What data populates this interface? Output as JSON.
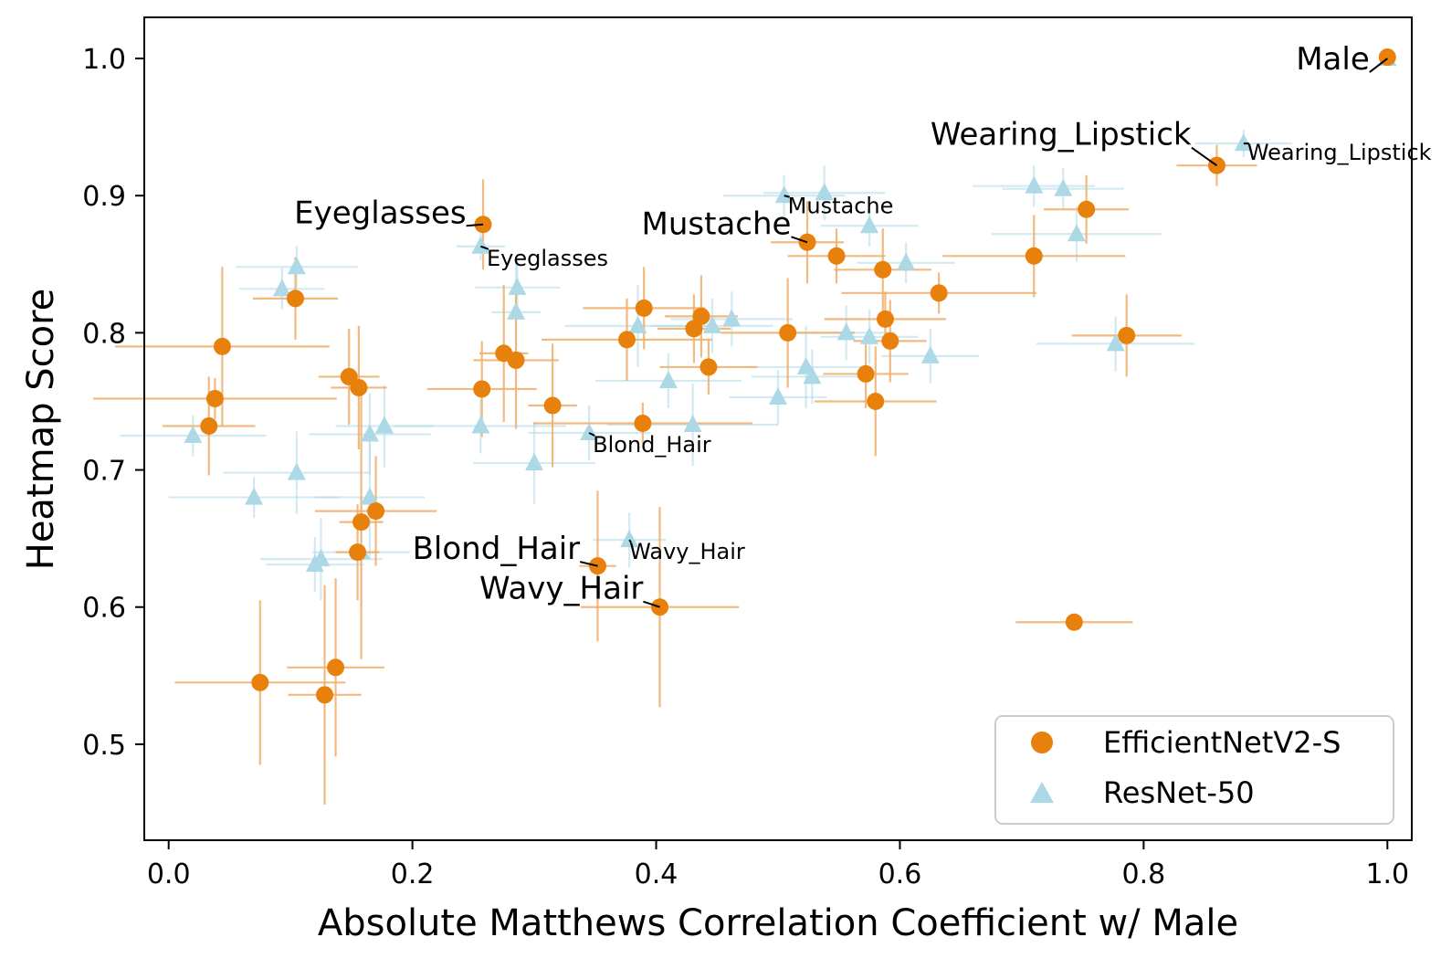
{
  "chart_data": {
    "type": "scatter",
    "title": "",
    "xlabel": "Absolute Matthews Correlation Coefficient w/ Male",
    "ylabel": "Heatmap Score",
    "xlim": [
      -0.02,
      1.02
    ],
    "ylim": [
      0.43,
      1.03
    ],
    "xticks": [
      0.0,
      0.2,
      0.4,
      0.6,
      0.8,
      1.0
    ],
    "xtick_labels": [
      "0.0",
      "0.2",
      "0.4",
      "0.6",
      "0.8",
      "1.0"
    ],
    "yticks": [
      0.5,
      0.6,
      0.7,
      0.8,
      0.9,
      1.0
    ],
    "ytick_labels": [
      "0.5",
      "0.6",
      "0.7",
      "0.8",
      "0.9",
      "1.0"
    ],
    "grid": false,
    "legend_position": "bottom-right",
    "series": [
      {
        "name": "ResNet-50",
        "marker": "triangle",
        "color": "#add8e6",
        "errcolor": "#add8e6",
        "points": [
          {
            "x": 0.02,
            "y": 0.725,
            "xerr": 0.06,
            "yerr": 0.015
          },
          {
            "x": 0.07,
            "y": 0.68,
            "xerr": 0.07,
            "yerr": 0.015
          },
          {
            "x": 0.093,
            "y": 0.832,
            "xerr": 0.035,
            "yerr": 0.015
          },
          {
            "x": 0.105,
            "y": 0.848,
            "xerr": 0.05,
            "yerr": 0.015
          },
          {
            "x": 0.105,
            "y": 0.698,
            "xerr": 0.06,
            "yerr": 0.03
          },
          {
            "x": 0.12,
            "y": 0.631,
            "xerr": 0.04,
            "yerr": 0.02
          },
          {
            "x": 0.125,
            "y": 0.635,
            "xerr": 0.05,
            "yerr": 0.03
          },
          {
            "x": 0.158,
            "y": 0.64,
            "xerr": 0.04,
            "yerr": 0.04
          },
          {
            "x": 0.165,
            "y": 0.68,
            "xerr": 0.045,
            "yerr": 0.045
          },
          {
            "x": 0.165,
            "y": 0.726,
            "xerr": 0.05,
            "yerr": 0.03
          },
          {
            "x": 0.177,
            "y": 0.732,
            "xerr": 0.04,
            "yerr": 0.03
          },
          {
            "x": 0.256,
            "y": 0.863,
            "xerr": 0.02,
            "yerr": 0.01
          },
          {
            "x": 0.256,
            "y": 0.732,
            "xerr": 0.07,
            "yerr": 0.02
          },
          {
            "x": 0.285,
            "y": 0.815,
            "xerr": 0.02,
            "yerr": 0.04
          },
          {
            "x": 0.286,
            "y": 0.833,
            "xerr": 0.035,
            "yerr": 0.02
          },
          {
            "x": 0.3,
            "y": 0.705,
            "xerr": 0.05,
            "yerr": 0.03
          },
          {
            "x": 0.345,
            "y": 0.727,
            "xerr": 0.05,
            "yerr": 0.02
          },
          {
            "x": 0.378,
            "y": 0.649,
            "xerr": 0.03,
            "yerr": 0.02
          },
          {
            "x": 0.385,
            "y": 0.805,
            "xerr": 0.06,
            "yerr": 0.03
          },
          {
            "x": 0.41,
            "y": 0.765,
            "xerr": 0.06,
            "yerr": 0.02
          },
          {
            "x": 0.43,
            "y": 0.733,
            "xerr": 0.07,
            "yerr": 0.03
          },
          {
            "x": 0.446,
            "y": 0.805,
            "xerr": 0.05,
            "yerr": 0.02
          },
          {
            "x": 0.462,
            "y": 0.81,
            "xerr": 0.05,
            "yerr": 0.02
          },
          {
            "x": 0.5,
            "y": 0.753,
            "xerr": 0.04,
            "yerr": 0.02
          },
          {
            "x": 0.505,
            "y": 0.9,
            "xerr": 0.05,
            "yerr": 0.015
          },
          {
            "x": 0.523,
            "y": 0.775,
            "xerr": 0.05,
            "yerr": 0.03
          },
          {
            "x": 0.528,
            "y": 0.768,
            "xerr": 0.05,
            "yerr": 0.02
          },
          {
            "x": 0.538,
            "y": 0.902,
            "xerr": 0.05,
            "yerr": 0.02
          },
          {
            "x": 0.556,
            "y": 0.8,
            "xerr": 0.04,
            "yerr": 0.02
          },
          {
            "x": 0.575,
            "y": 0.878,
            "xerr": 0.04,
            "yerr": 0.015
          },
          {
            "x": 0.575,
            "y": 0.797,
            "xerr": 0.04,
            "yerr": 0.02
          },
          {
            "x": 0.605,
            "y": 0.851,
            "xerr": 0.04,
            "yerr": 0.015
          },
          {
            "x": 0.625,
            "y": 0.783,
            "xerr": 0.04,
            "yerr": 0.02
          },
          {
            "x": 0.71,
            "y": 0.907,
            "xerr": 0.05,
            "yerr": 0.015
          },
          {
            "x": 0.734,
            "y": 0.905,
            "xerr": 0.05,
            "yerr": 0.015
          },
          {
            "x": 0.745,
            "y": 0.872,
            "xerr": 0.07,
            "yerr": 0.02
          },
          {
            "x": 0.777,
            "y": 0.792,
            "xerr": 0.065,
            "yerr": 0.02
          },
          {
            "x": 0.882,
            "y": 0.938,
            "xerr": 0.04,
            "yerr": 0.01
          },
          {
            "x": 1.0,
            "y": 1.0,
            "xerr": 0.0,
            "yerr": 0.005
          }
        ]
      },
      {
        "name": "EfficientNetV2-S",
        "marker": "circle",
        "color": "#e8800c",
        "errcolor": "#f0ae6a",
        "points": [
          {
            "x": 0.033,
            "y": 0.732,
            "xerr": 0.038,
            "yerr": 0.036
          },
          {
            "x": 0.038,
            "y": 0.752,
            "xerr": 0.1,
            "yerr": 0.015
          },
          {
            "x": 0.044,
            "y": 0.79,
            "xerr": 0.088,
            "yerr": 0.058
          },
          {
            "x": 0.075,
            "y": 0.545,
            "xerr": 0.07,
            "yerr": 0.06
          },
          {
            "x": 0.104,
            "y": 0.825,
            "xerr": 0.035,
            "yerr": 0.03
          },
          {
            "x": 0.128,
            "y": 0.536,
            "xerr": 0.03,
            "yerr": 0.08
          },
          {
            "x": 0.137,
            "y": 0.556,
            "xerr": 0.04,
            "yerr": 0.065
          },
          {
            "x": 0.148,
            "y": 0.768,
            "xerr": 0.025,
            "yerr": 0.035
          },
          {
            "x": 0.155,
            "y": 0.64,
            "xerr": 0.018,
            "yerr": 0.035
          },
          {
            "x": 0.156,
            "y": 0.76,
            "xerr": 0.023,
            "yerr": 0.045
          },
          {
            "x": 0.158,
            "y": 0.662,
            "xerr": 0.018,
            "yerr": 0.1
          },
          {
            "x": 0.17,
            "y": 0.67,
            "xerr": 0.05,
            "yerr": 0.04
          },
          {
            "x": 0.257,
            "y": 0.759,
            "xerr": 0.045,
            "yerr": 0.035
          },
          {
            "x": 0.258,
            "y": 0.879,
            "xerr": 0.006,
            "yerr": 0.033
          },
          {
            "x": 0.275,
            "y": 0.785,
            "xerr": 0.02,
            "yerr": 0.05
          },
          {
            "x": 0.285,
            "y": 0.78,
            "xerr": 0.035,
            "yerr": 0.05
          },
          {
            "x": 0.315,
            "y": 0.747,
            "xerr": 0.02,
            "yerr": 0.045
          },
          {
            "x": 0.352,
            "y": 0.63,
            "xerr": 0.015,
            "yerr": 0.055
          },
          {
            "x": 0.376,
            "y": 0.795,
            "xerr": 0.07,
            "yerr": 0.03
          },
          {
            "x": 0.389,
            "y": 0.734,
            "xerr": 0.09,
            "yerr": 0.015
          },
          {
            "x": 0.39,
            "y": 0.818,
            "xerr": 0.05,
            "yerr": 0.03
          },
          {
            "x": 0.403,
            "y": 0.6,
            "xerr": 0.065,
            "yerr": 0.073
          },
          {
            "x": 0.431,
            "y": 0.803,
            "xerr": 0.03,
            "yerr": 0.025
          },
          {
            "x": 0.437,
            "y": 0.812,
            "xerr": 0.03,
            "yerr": 0.03
          },
          {
            "x": 0.443,
            "y": 0.775,
            "xerr": 0.04,
            "yerr": 0.02
          },
          {
            "x": 0.508,
            "y": 0.8,
            "xerr": 0.055,
            "yerr": 0.04
          },
          {
            "x": 0.524,
            "y": 0.866,
            "xerr": 0.03,
            "yerr": 0.03
          },
          {
            "x": 0.548,
            "y": 0.856,
            "xerr": 0.04,
            "yerr": 0.02
          },
          {
            "x": 0.572,
            "y": 0.77,
            "xerr": 0.035,
            "yerr": 0.025
          },
          {
            "x": 0.58,
            "y": 0.75,
            "xerr": 0.05,
            "yerr": 0.04
          },
          {
            "x": 0.586,
            "y": 0.846,
            "xerr": 0.04,
            "yerr": 0.03
          },
          {
            "x": 0.588,
            "y": 0.81,
            "xerr": 0.05,
            "yerr": 0.02
          },
          {
            "x": 0.592,
            "y": 0.794,
            "xerr": 0.03,
            "yerr": 0.03
          },
          {
            "x": 0.632,
            "y": 0.829,
            "xerr": 0.08,
            "yerr": 0.015
          },
          {
            "x": 0.71,
            "y": 0.856,
            "xerr": 0.075,
            "yerr": 0.03
          },
          {
            "x": 0.743,
            "y": 0.589,
            "xerr": 0.048,
            "yerr": 0.006
          },
          {
            "x": 0.753,
            "y": 0.89,
            "xerr": 0.035,
            "yerr": 0.025
          },
          {
            "x": 0.786,
            "y": 0.798,
            "xerr": 0.045,
            "yerr": 0.03
          },
          {
            "x": 0.86,
            "y": 0.922,
            "xerr": 0.033,
            "yerr": 0.015
          },
          {
            "x": 1.0,
            "y": 1.001,
            "xerr": 0.0,
            "yerr": 0.002
          }
        ]
      }
    ],
    "annotations": [
      {
        "text": "Male",
        "size": "large",
        "x": 0.925,
        "y": 0.992,
        "px": 1.0,
        "py": 1.0
      },
      {
        "text": "Wearing_Lipstick",
        "size": "large",
        "x": 0.625,
        "y": 0.937,
        "px": 0.86,
        "py": 0.922
      },
      {
        "text": "Wearing_Lipstick",
        "size": "small",
        "x": 0.885,
        "y": 0.926,
        "px": 0.882,
        "py": 0.938
      },
      {
        "text": "Eyeglasses",
        "size": "large",
        "x": 0.103,
        "y": 0.88,
        "px": 0.258,
        "py": 0.879
      },
      {
        "text": "Eyeglasses",
        "size": "small",
        "x": 0.261,
        "y": 0.849,
        "px": 0.256,
        "py": 0.863
      },
      {
        "text": "Mustache",
        "size": "large",
        "x": 0.388,
        "y": 0.872,
        "px": 0.524,
        "py": 0.866
      },
      {
        "text": "Mustache",
        "size": "small",
        "x": 0.508,
        "y": 0.887,
        "px": 0.505,
        "py": 0.9
      },
      {
        "text": "Blond_Hair",
        "size": "small",
        "x": 0.348,
        "y": 0.713,
        "px": 0.345,
        "py": 0.727
      },
      {
        "text": "Blond_Hair",
        "size": "large",
        "x": 0.2,
        "y": 0.635,
        "px": 0.352,
        "py": 0.63
      },
      {
        "text": "Wavy_Hair",
        "size": "small",
        "x": 0.378,
        "y": 0.635,
        "px": 0.378,
        "py": 0.649
      },
      {
        "text": "Wavy_Hair",
        "size": "large",
        "x": 0.255,
        "y": 0.606,
        "px": 0.403,
        "py": 0.6
      }
    ],
    "legend": [
      {
        "label": "EfficientNetV2-S",
        "marker": "circle",
        "color": "#e8800c"
      },
      {
        "label": "ResNet-50",
        "marker": "triangle",
        "color": "#add8e6"
      }
    ]
  }
}
